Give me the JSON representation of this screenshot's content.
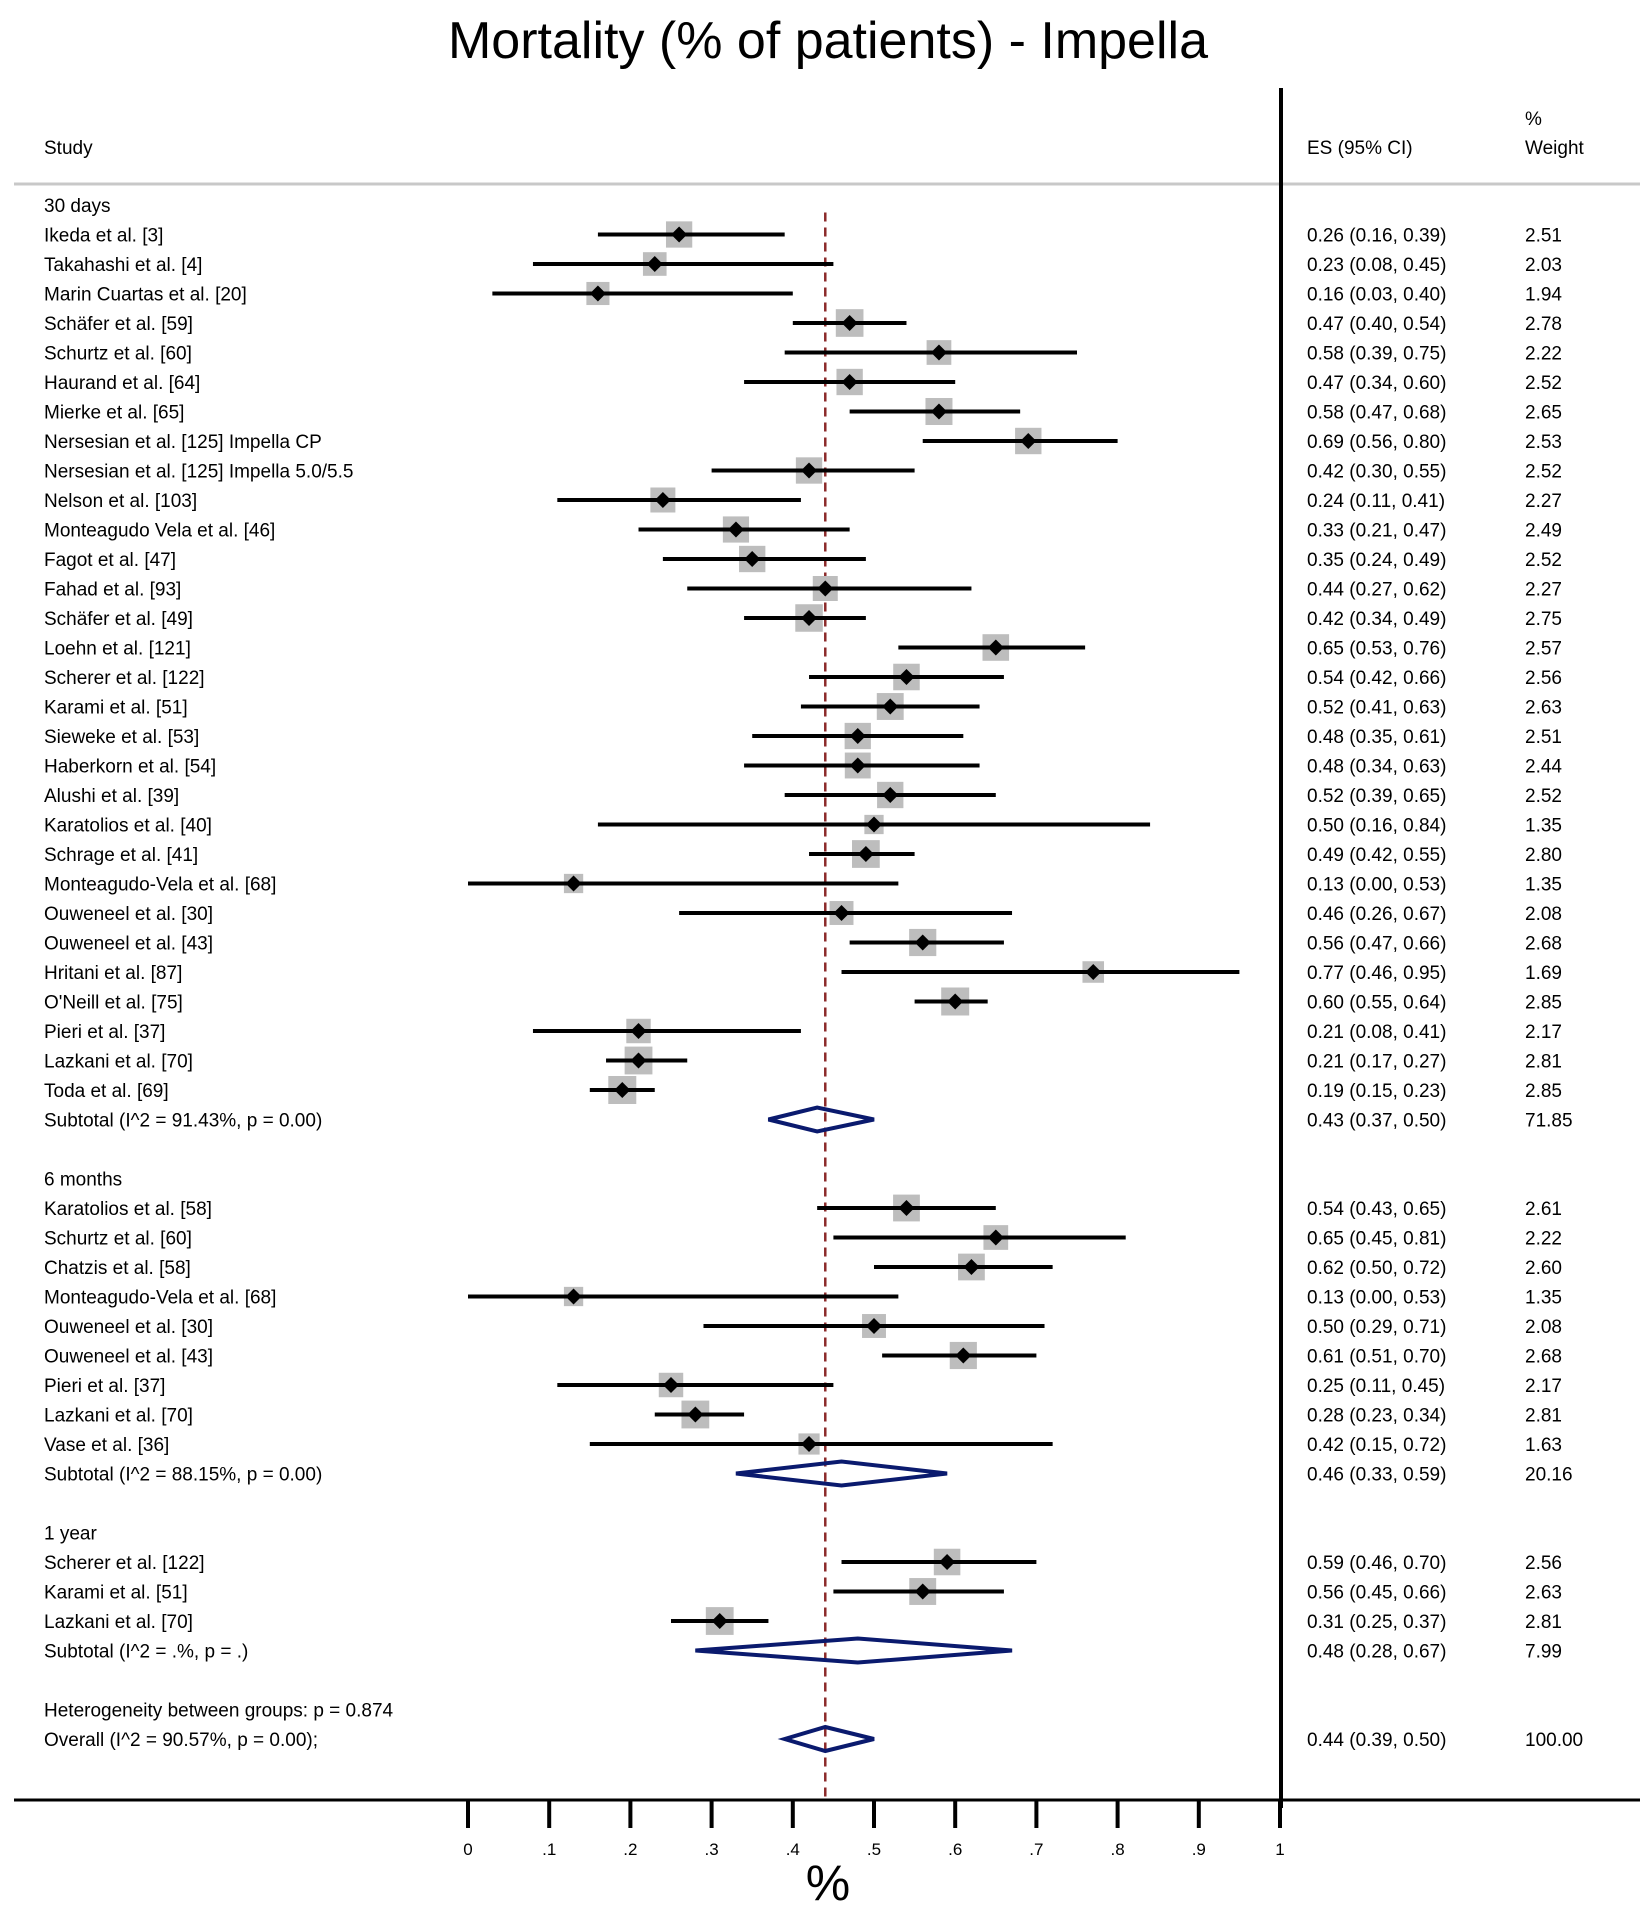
{
  "title": "Mortality (% of patients) - Impella",
  "header": {
    "study": "Study",
    "es": "ES (95% CI)",
    "weight_pct": "%",
    "weight": "Weight"
  },
  "chart_data": {
    "type": "forest",
    "title": "Mortality (% of patients) - Impella",
    "xlabel": "%",
    "xlim": [
      0,
      1
    ],
    "x_ticks": [
      "0",
      ".1",
      ".2",
      ".3",
      ".4",
      ".5",
      ".6",
      ".7",
      ".8",
      ".9",
      "1"
    ],
    "overall_line": 0.44,
    "groups": [
      {
        "label": "30 days",
        "studies": [
          {
            "name": "Ikeda et al. [3]",
            "es": 0.26,
            "lo": 0.16,
            "hi": 0.39,
            "es_text": "0.26 (0.16, 0.39)",
            "weight": "2.51"
          },
          {
            "name": "Takahashi et al. [4]",
            "es": 0.23,
            "lo": 0.08,
            "hi": 0.45,
            "es_text": "0.23 (0.08, 0.45)",
            "weight": "2.03"
          },
          {
            "name": "Marin Cuartas et al. [20]",
            "es": 0.16,
            "lo": 0.03,
            "hi": 0.4,
            "es_text": "0.16 (0.03, 0.40)",
            "weight": "1.94"
          },
          {
            "name": "Schäfer et al. [59]",
            "es": 0.47,
            "lo": 0.4,
            "hi": 0.54,
            "es_text": "0.47 (0.40, 0.54)",
            "weight": "2.78"
          },
          {
            "name": "Schurtz et al. [60]",
            "es": 0.58,
            "lo": 0.39,
            "hi": 0.75,
            "es_text": "0.58 (0.39, 0.75)",
            "weight": "2.22"
          },
          {
            "name": "Haurand et al. [64]",
            "es": 0.47,
            "lo": 0.34,
            "hi": 0.6,
            "es_text": "0.47 (0.34, 0.60)",
            "weight": "2.52"
          },
          {
            "name": "Mierke et al. [65]",
            "es": 0.58,
            "lo": 0.47,
            "hi": 0.68,
            "es_text": "0.58 (0.47, 0.68)",
            "weight": "2.65"
          },
          {
            "name": "Nersesian et al. [125] Impella CP",
            "es": 0.69,
            "lo": 0.56,
            "hi": 0.8,
            "es_text": "0.69 (0.56, 0.80)",
            "weight": "2.53"
          },
          {
            "name": "Nersesian et al. [125] Impella 5.0/5.5",
            "es": 0.42,
            "lo": 0.3,
            "hi": 0.55,
            "es_text": "0.42 (0.30, 0.55)",
            "weight": "2.52"
          },
          {
            "name": "Nelson et al. [103]",
            "es": 0.24,
            "lo": 0.11,
            "hi": 0.41,
            "es_text": "0.24 (0.11, 0.41)",
            "weight": "2.27"
          },
          {
            "name": "Monteagudo Vela et al. [46]",
            "es": 0.33,
            "lo": 0.21,
            "hi": 0.47,
            "es_text": "0.33 (0.21, 0.47)",
            "weight": "2.49"
          },
          {
            "name": "Fagot et al. [47]",
            "es": 0.35,
            "lo": 0.24,
            "hi": 0.49,
            "es_text": "0.35 (0.24, 0.49)",
            "weight": "2.52"
          },
          {
            "name": "Fahad et al. [93]",
            "es": 0.44,
            "lo": 0.27,
            "hi": 0.62,
            "es_text": "0.44 (0.27, 0.62)",
            "weight": "2.27"
          },
          {
            "name": "Schäfer et al. [49]",
            "es": 0.42,
            "lo": 0.34,
            "hi": 0.49,
            "es_text": "0.42 (0.34, 0.49)",
            "weight": "2.75"
          },
          {
            "name": "Loehn et al. [121]",
            "es": 0.65,
            "lo": 0.53,
            "hi": 0.76,
            "es_text": "0.65 (0.53, 0.76)",
            "weight": "2.57"
          },
          {
            "name": "Scherer et al. [122]",
            "es": 0.54,
            "lo": 0.42,
            "hi": 0.66,
            "es_text": "0.54 (0.42, 0.66)",
            "weight": "2.56"
          },
          {
            "name": "Karami et al. [51]",
            "es": 0.52,
            "lo": 0.41,
            "hi": 0.63,
            "es_text": "0.52 (0.41, 0.63)",
            "weight": "2.63"
          },
          {
            "name": "Sieweke et al. [53]",
            "es": 0.48,
            "lo": 0.35,
            "hi": 0.61,
            "es_text": "0.48 (0.35, 0.61)",
            "weight": "2.51"
          },
          {
            "name": "Haberkorn et al. [54]",
            "es": 0.48,
            "lo": 0.34,
            "hi": 0.63,
            "es_text": "0.48 (0.34, 0.63)",
            "weight": "2.44"
          },
          {
            "name": "Alushi et al. [39]",
            "es": 0.52,
            "lo": 0.39,
            "hi": 0.65,
            "es_text": "0.52 (0.39, 0.65)",
            "weight": "2.52"
          },
          {
            "name": "Karatolios et al. [40]",
            "es": 0.5,
            "lo": 0.16,
            "hi": 0.84,
            "es_text": "0.50 (0.16, 0.84)",
            "weight": "1.35"
          },
          {
            "name": "Schrage et al. [41]",
            "es": 0.49,
            "lo": 0.42,
            "hi": 0.55,
            "es_text": "0.49 (0.42, 0.55)",
            "weight": "2.80"
          },
          {
            "name": "Monteagudo-Vela et al. [68]",
            "es": 0.13,
            "lo": 0.0,
            "hi": 0.53,
            "es_text": "0.13 (0.00, 0.53)",
            "weight": "1.35"
          },
          {
            "name": "Ouweneel et al. [30]",
            "es": 0.46,
            "lo": 0.26,
            "hi": 0.67,
            "es_text": "0.46 (0.26, 0.67)",
            "weight": "2.08"
          },
          {
            "name": "Ouweneel et al. [43]",
            "es": 0.56,
            "lo": 0.47,
            "hi": 0.66,
            "es_text": "0.56 (0.47, 0.66)",
            "weight": "2.68"
          },
          {
            "name": "Hritani et al. [87]",
            "es": 0.77,
            "lo": 0.46,
            "hi": 0.95,
            "es_text": "0.77 (0.46, 0.95)",
            "weight": "1.69"
          },
          {
            "name": "O'Neill et al. [75]",
            "es": 0.6,
            "lo": 0.55,
            "hi": 0.64,
            "es_text": "0.60 (0.55, 0.64)",
            "weight": "2.85"
          },
          {
            "name": "Pieri et al. [37]",
            "es": 0.21,
            "lo": 0.08,
            "hi": 0.41,
            "es_text": "0.21 (0.08, 0.41)",
            "weight": "2.17"
          },
          {
            "name": "Lazkani et al. [70]",
            "es": 0.21,
            "lo": 0.17,
            "hi": 0.27,
            "es_text": "0.21 (0.17, 0.27)",
            "weight": "2.81"
          },
          {
            "name": "Toda et al. [69]",
            "es": 0.19,
            "lo": 0.15,
            "hi": 0.23,
            "es_text": "0.19 (0.15, 0.23)",
            "weight": "2.85"
          }
        ],
        "subtotal": {
          "label": "Subtotal  (I^2 = 91.43%, p = 0.00)",
          "es": 0.43,
          "lo": 0.37,
          "hi": 0.5,
          "es_text": "0.43 (0.37, 0.50)",
          "weight": "71.85"
        }
      },
      {
        "label": "6 months",
        "studies": [
          {
            "name": "Karatolios et al. [58]",
            "es": 0.54,
            "lo": 0.43,
            "hi": 0.65,
            "es_text": "0.54 (0.43, 0.65)",
            "weight": "2.61"
          },
          {
            "name": "Schurtz et al. [60]",
            "es": 0.65,
            "lo": 0.45,
            "hi": 0.81,
            "es_text": "0.65 (0.45, 0.81)",
            "weight": "2.22"
          },
          {
            "name": "Chatzis et al. [58]",
            "es": 0.62,
            "lo": 0.5,
            "hi": 0.72,
            "es_text": "0.62 (0.50, 0.72)",
            "weight": "2.60"
          },
          {
            "name": "Monteagudo-Vela et al. [68]",
            "es": 0.13,
            "lo": 0.0,
            "hi": 0.53,
            "es_text": "0.13 (0.00, 0.53)",
            "weight": "1.35"
          },
          {
            "name": "Ouweneel et al. [30]",
            "es": 0.5,
            "lo": 0.29,
            "hi": 0.71,
            "es_text": "0.50 (0.29, 0.71)",
            "weight": "2.08"
          },
          {
            "name": "Ouweneel et al. [43]",
            "es": 0.61,
            "lo": 0.51,
            "hi": 0.7,
            "es_text": "0.61 (0.51, 0.70)",
            "weight": "2.68"
          },
          {
            "name": "Pieri et al. [37]",
            "es": 0.25,
            "lo": 0.11,
            "hi": 0.45,
            "es_text": "0.25 (0.11, 0.45)",
            "weight": "2.17"
          },
          {
            "name": "Lazkani et al. [70]",
            "es": 0.28,
            "lo": 0.23,
            "hi": 0.34,
            "es_text": "0.28 (0.23, 0.34)",
            "weight": "2.81"
          },
          {
            "name": "Vase et al. [36]",
            "es": 0.42,
            "lo": 0.15,
            "hi": 0.72,
            "es_text": "0.42 (0.15, 0.72)",
            "weight": "1.63"
          }
        ],
        "subtotal": {
          "label": "Subtotal  (I^2 = 88.15%, p = 0.00)",
          "es": 0.46,
          "lo": 0.33,
          "hi": 0.59,
          "es_text": "0.46 (0.33, 0.59)",
          "weight": "20.16"
        }
      },
      {
        "label": "1 year",
        "studies": [
          {
            "name": "Scherer et al. [122]",
            "es": 0.59,
            "lo": 0.46,
            "hi": 0.7,
            "es_text": "0.59 (0.46, 0.70)",
            "weight": "2.56"
          },
          {
            "name": "Karami et al. [51]",
            "es": 0.56,
            "lo": 0.45,
            "hi": 0.66,
            "es_text": "0.56 (0.45, 0.66)",
            "weight": "2.63"
          },
          {
            "name": "Lazkani et al. [70]",
            "es": 0.31,
            "lo": 0.25,
            "hi": 0.37,
            "es_text": "0.31 (0.25, 0.37)",
            "weight": "2.81"
          }
        ],
        "subtotal": {
          "label": "Subtotal  (I^2 = .%, p = .)",
          "es": 0.48,
          "lo": 0.28,
          "hi": 0.67,
          "es_text": "0.48 (0.28, 0.67)",
          "weight": "7.99"
        }
      }
    ],
    "heterogeneity": "Heterogeneity between groups: p = 0.874",
    "overall": {
      "label": "Overall  (I^2 = 90.57%, p = 0.00);",
      "es": 0.44,
      "lo": 0.39,
      "hi": 0.5,
      "es_text": "0.44 (0.39, 0.50)",
      "weight": "100.00"
    }
  },
  "colors": {
    "diamond": "#0a1a6e",
    "reference_line": "#8b2a2a",
    "weight_box": "#bdbdbd",
    "header_rule": "#c8c8c8",
    "axis": "#000000"
  }
}
